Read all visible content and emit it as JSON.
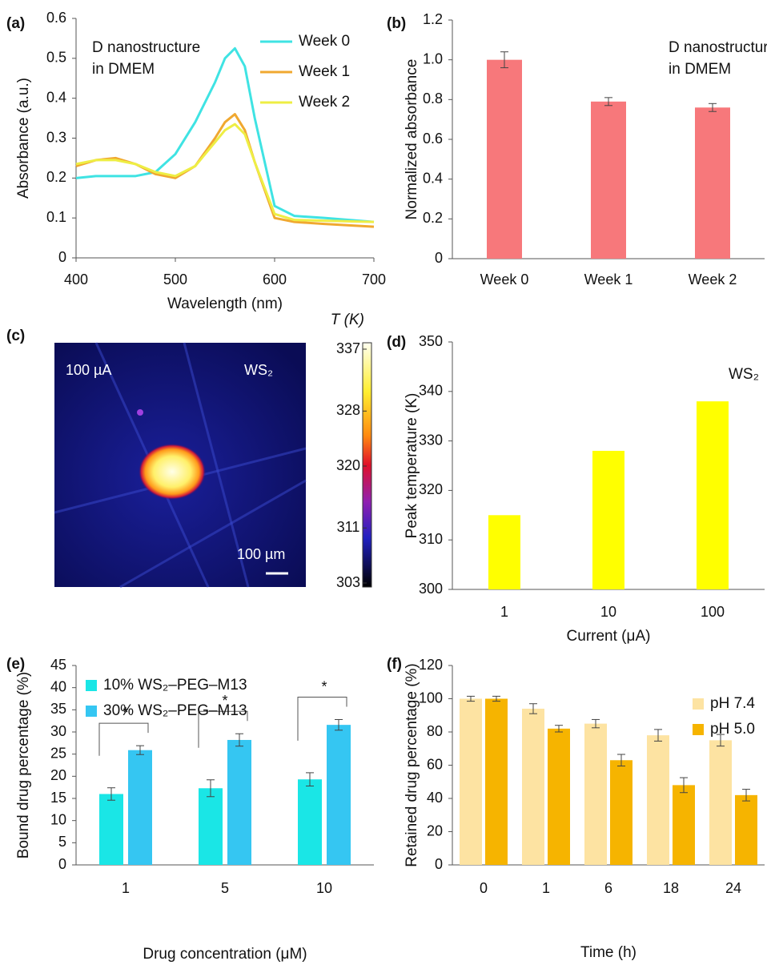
{
  "chart_data": [
    {
      "type": "line",
      "label": "(a)",
      "xlabel": "Wavelength (nm)",
      "ylabel": "Absorbance (a.u.)",
      "annotation": [
        "D nanostructure",
        "in DMEM"
      ],
      "x": [
        400,
        420,
        440,
        460,
        480,
        500,
        520,
        540,
        550,
        560,
        570,
        580,
        600,
        620,
        650,
        700
      ],
      "series": [
        {
          "name": "Week 0",
          "color": "#3fe3e3",
          "values": [
            0.2,
            0.205,
            0.205,
            0.205,
            0.215,
            0.26,
            0.34,
            0.44,
            0.5,
            0.525,
            0.48,
            0.35,
            0.13,
            0.105,
            0.1,
            0.09
          ]
        },
        {
          "name": "Week 1",
          "color": "#f0a830",
          "values": [
            0.23,
            0.245,
            0.25,
            0.235,
            0.21,
            0.2,
            0.23,
            0.3,
            0.34,
            0.36,
            0.32,
            0.24,
            0.1,
            0.09,
            0.085,
            0.078
          ]
        },
        {
          "name": "Week 2",
          "color": "#eeee44",
          "values": [
            0.235,
            0.245,
            0.245,
            0.235,
            0.215,
            0.205,
            0.23,
            0.29,
            0.32,
            0.335,
            0.31,
            0.24,
            0.11,
            0.095,
            0.093,
            0.09
          ]
        }
      ],
      "xlim": [
        400,
        700
      ],
      "xticks": [
        400,
        500,
        600,
        700
      ],
      "ylim": [
        0,
        0.6
      ],
      "yticks": [
        0,
        0.1,
        0.2,
        0.3,
        0.4,
        0.5,
        0.6
      ],
      "legend": "upper right"
    },
    {
      "type": "bar",
      "label": "(b)",
      "ylabel": "Normalized absorbance",
      "annotation": [
        "D nanostructure",
        "in DMEM"
      ],
      "categories": [
        "Week 0",
        "Week 1",
        "Week 2"
      ],
      "values": [
        1.0,
        0.79,
        0.76
      ],
      "errors": [
        0.04,
        0.02,
        0.02
      ],
      "color": "#f7787b",
      "ylim": [
        0,
        1.2
      ],
      "yticks": [
        0,
        0.2,
        0.4,
        0.6,
        0.8,
        {
          "value": 1,
          "label": "1.0"
        },
        1.2
      ]
    },
    {
      "type": "image",
      "label": "(c)",
      "annotation": [
        "100 µA",
        "WS₂",
        "100 µm"
      ],
      "colorbar_label": "T (K)",
      "clim": [
        303,
        337
      ],
      "cticks": [
        303,
        311,
        320,
        328,
        337
      ]
    },
    {
      "type": "bar",
      "label": "(d)",
      "xlabel": "Current (μA)",
      "ylabel": "Peak temperature (K)",
      "annotation": [
        "WS₂"
      ],
      "categories": [
        "1",
        "10",
        "100"
      ],
      "values": [
        315,
        328,
        338
      ],
      "color": "#ffff00",
      "ylim": [
        300,
        350
      ],
      "yticks": [
        300,
        310,
        320,
        330,
        340,
        350
      ]
    },
    {
      "type": "bar",
      "label": "(e)",
      "xlabel": "Drug concentration (μM)",
      "ylabel": "Bound drug percentage (%)",
      "categories": [
        "1",
        "5",
        "10"
      ],
      "series": [
        {
          "name": "10% WS₂–PEG–M13",
          "color": "#1ae6e6",
          "values": [
            16,
            17.3,
            19.3
          ],
          "errors": [
            1.4,
            1.9,
            1.5
          ]
        },
        {
          "name": "30% WS₂–PEG–M13",
          "color": "#35c6f2",
          "values": [
            25.9,
            28.2,
            31.6
          ],
          "errors": [
            1.0,
            1.4,
            1.2
          ]
        }
      ],
      "significance": [
        "*",
        "*",
        "*"
      ],
      "ylim": [
        0,
        45
      ],
      "yticks": [
        0,
        5,
        10,
        15,
        20,
        25,
        30,
        35,
        40,
        45
      ],
      "legend": "upper left"
    },
    {
      "type": "bar",
      "label": "(f)",
      "xlabel": "Time (h)",
      "ylabel": "Retained drug percentage (%)",
      "categories": [
        "0",
        "1",
        "6",
        "18",
        "24"
      ],
      "series": [
        {
          "name": "pH 7.4",
          "color": "#fde3a2",
          "values": [
            100,
            94,
            85,
            78,
            75
          ],
          "errors": [
            1.5,
            3,
            2.5,
            3.5,
            3.5
          ]
        },
        {
          "name": "pH 5.0",
          "color": "#f6b400",
          "values": [
            100,
            82,
            63,
            48,
            42
          ],
          "errors": [
            1.5,
            2,
            3.5,
            4.5,
            3.5
          ]
        }
      ],
      "ylim": [
        0,
        120
      ],
      "yticks": [
        0,
        20,
        40,
        60,
        80,
        100,
        120
      ],
      "legend": "upper right"
    }
  ]
}
